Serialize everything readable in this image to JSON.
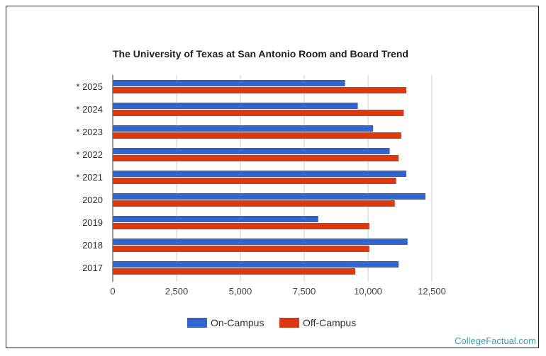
{
  "chart_data": {
    "type": "bar",
    "orientation": "horizontal",
    "title": "The University of Texas at San Antonio Room and Board Trend",
    "categories": [
      "* 2025",
      "* 2024",
      "* 2023",
      "* 2022",
      "* 2021",
      "2020",
      "2019",
      "2018",
      "2017"
    ],
    "series": [
      {
        "name": "On-Campus",
        "color": "#3366cc",
        "values": [
          9100,
          9600,
          10200,
          10850,
          11500,
          12250,
          8050,
          11550,
          11200
        ]
      },
      {
        "name": "Off-Campus",
        "color": "#dc3912",
        "values": [
          11500,
          11400,
          11300,
          11200,
          11100,
          11050,
          10050,
          10050,
          9500
        ]
      }
    ],
    "xlim": [
      0,
      12500
    ],
    "xticks": [
      0,
      2500,
      5000,
      7500,
      10000,
      12500
    ],
    "xtick_labels": [
      "0",
      "2,500",
      "5,000",
      "7,500",
      "10,000",
      "12,500"
    ],
    "grid": "vertical",
    "legend": "bottom"
  },
  "watermark": "CollegeFactual.com"
}
